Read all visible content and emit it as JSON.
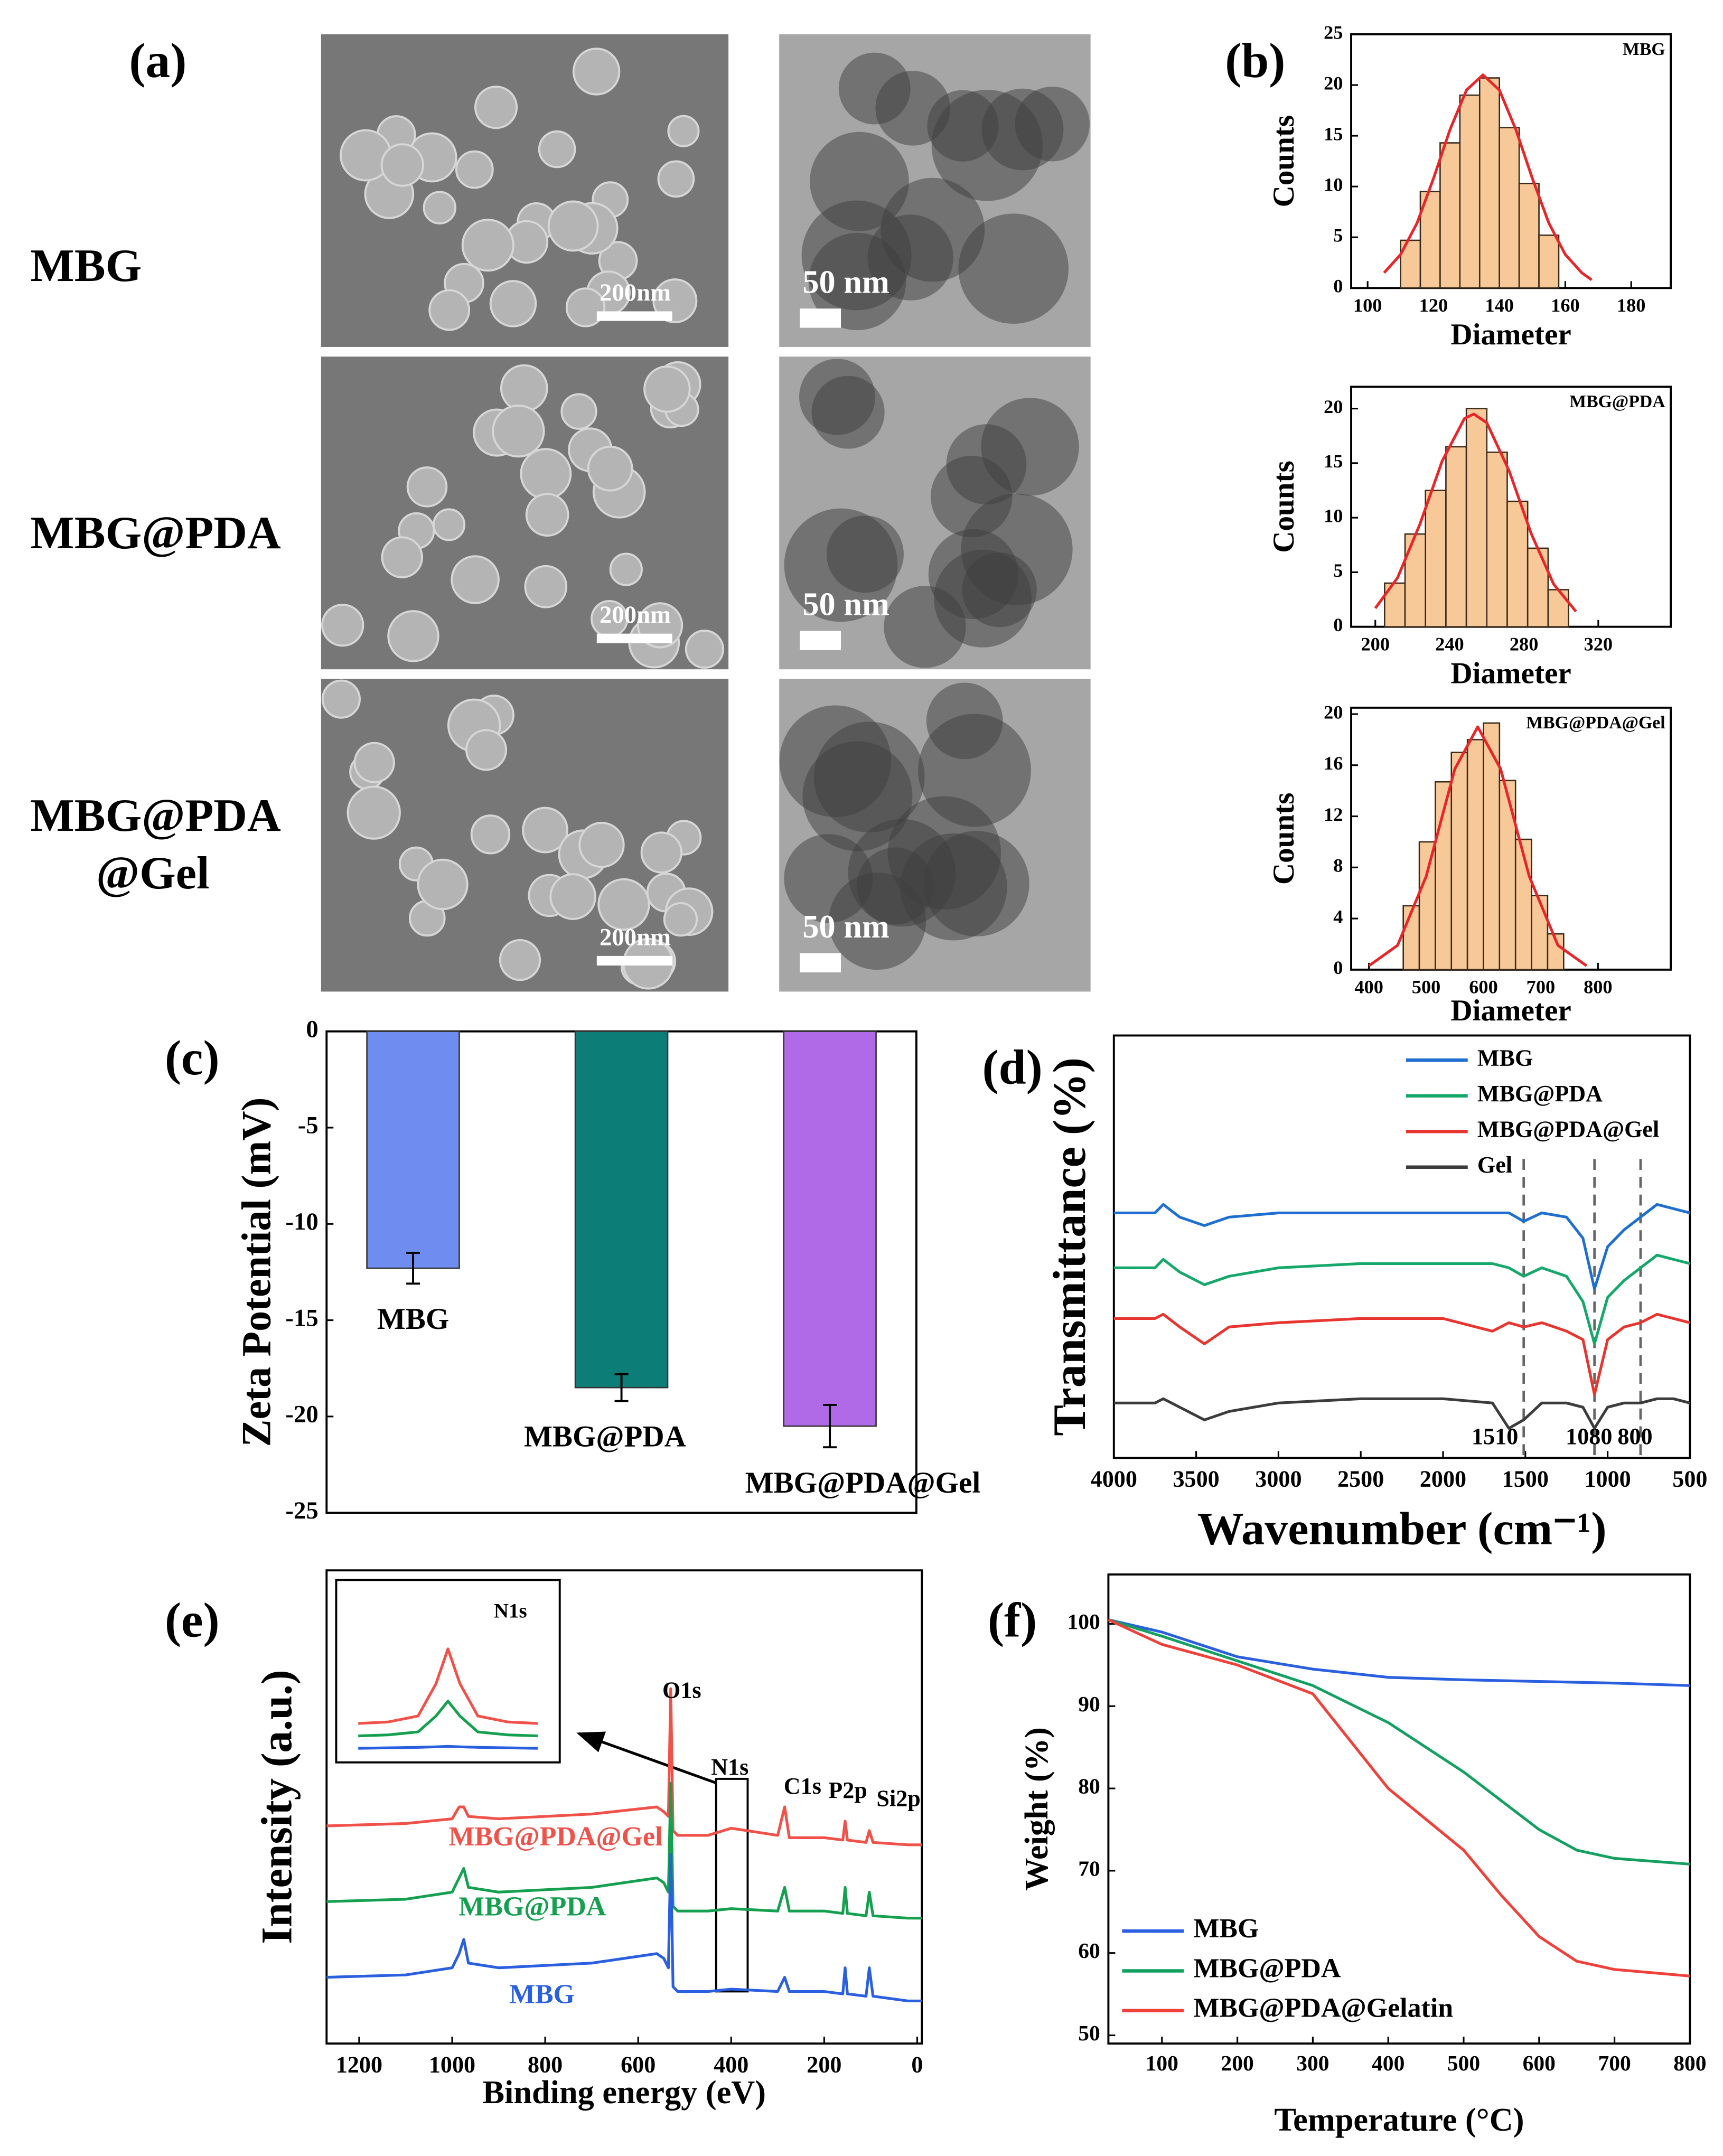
{
  "panels": [
    "(a)",
    "(b)",
    "(c)",
    "(d)",
    "(e)",
    "(f)"
  ],
  "micrographs": {
    "rows": [
      [
        "MBG"
      ],
      [
        "MBG@PDA"
      ],
      [
        "MBG@PDA",
        "@Gel"
      ]
    ],
    "sem_scale": "200nm",
    "tem_scale": "50 nm"
  },
  "chart_data": [
    {
      "type": "histogram",
      "title": "MBG",
      "xlabel": "Diameter",
      "ylabel": "Counts",
      "bins": [
        110,
        116,
        122,
        128,
        134,
        140,
        146,
        152,
        158
      ],
      "values": [
        4.7,
        9.5,
        14.3,
        19,
        20.7,
        15.8,
        10.3,
        5.2
      ],
      "color": "#f8c998",
      "edge_color": "#3a2a1a",
      "fit": {
        "color": "#e8262a",
        "x": [
          105,
          110,
          115,
          120,
          125,
          130,
          135,
          140,
          145,
          150,
          155,
          160,
          165,
          168
        ],
        "values": [
          1.5,
          3.3,
          6.4,
          10.8,
          15.6,
          19.5,
          21,
          19.5,
          15.6,
          10.8,
          6.4,
          3.3,
          1.5,
          0.8
        ]
      },
      "xlim": [
        95,
        192
      ],
      "xticks": [
        100,
        120,
        140,
        160,
        180
      ],
      "ylim": [
        0,
        25
      ],
      "yticks": [
        0,
        5,
        10,
        15,
        20,
        25
      ]
    },
    {
      "type": "histogram",
      "title": "MBG@PDA",
      "xlabel": "Diameter",
      "ylabel": "Counts",
      "bins": [
        205,
        216,
        227,
        238,
        249,
        260,
        271,
        282,
        293,
        304
      ],
      "values": [
        4,
        8.5,
        12.5,
        16.5,
        20,
        16,
        11.5,
        7.2,
        3.4
      ],
      "color": "#f8c998",
      "edge_color": "#3a2a1a",
      "fit": {
        "color": "#e8262a",
        "x": [
          200,
          212,
          224,
          236,
          248,
          253,
          260,
          272,
          284,
          296,
          308
        ],
        "values": [
          1.7,
          4.5,
          9.4,
          15.2,
          19.1,
          19.5,
          18.7,
          14.3,
          8.5,
          3.9,
          1.4
        ]
      },
      "xlim": [
        187,
        359
      ],
      "xticks": [
        200,
        240,
        280,
        320
      ],
      "ylim": [
        0,
        22
      ],
      "yticks": [
        0,
        5,
        10,
        15,
        20
      ]
    },
    {
      "type": "histogram",
      "title": "MBG@PDA@Gel",
      "xlabel": "Diameter",
      "ylabel": "Counts",
      "bins": [
        460,
        488,
        516,
        544,
        572,
        600,
        628,
        656,
        684,
        712,
        740
      ],
      "values": [
        5,
        10,
        14.7,
        17,
        18,
        19.3,
        14.8,
        10.2,
        5.8,
        2.8
      ],
      "color": "#f8c998",
      "edge_color": "#3a2a1a",
      "fit": {
        "color": "#e8262a",
        "x": [
          400,
          450,
          500,
          550,
          590,
          630,
          680,
          730,
          780
        ],
        "values": [
          0.3,
          1.9,
          7.3,
          15.7,
          19,
          15.7,
          7.3,
          1.9,
          0.3
        ]
      },
      "xlim": [
        369,
        927
      ],
      "xticks": [
        400,
        500,
        600,
        700,
        800
      ],
      "ylim": [
        0,
        20.5
      ],
      "yticks": [
        0,
        4,
        8,
        12,
        16,
        20
      ]
    },
    {
      "type": "bar",
      "ylabel": "Zeta Potential (mV)",
      "categories": [
        "MBG",
        "MBG@PDA",
        "MBG@PDA@Gel"
      ],
      "values": [
        -12.3,
        -18.5,
        -20.5
      ],
      "errors": [
        0.8,
        0.7,
        1.1
      ],
      "colors": [
        "#6f8cf0",
        "#0d7d78",
        "#b06ae8"
      ],
      "ylim": [
        -25,
        0
      ],
      "yticks": [
        0,
        -5,
        -10,
        -15,
        -20,
        -25
      ]
    },
    {
      "type": "line",
      "xlabel": "Wavenumber (cm⁻¹)",
      "ylabel": "Transmittance (%)",
      "legend": "upper left",
      "x": [
        4000,
        3750,
        3700,
        3600,
        3450,
        3300,
        3000,
        2500,
        2000,
        1700,
        1600,
        1510,
        1400,
        1250,
        1150,
        1080,
        1000,
        900,
        800,
        700,
        600,
        500
      ],
      "series": [
        {
          "name": "MBG",
          "color": "#1f6fd0",
          "values": [
            58,
            58,
            60,
            57,
            55,
            57,
            58,
            58,
            58,
            58,
            58,
            56,
            58,
            57,
            52,
            40,
            50,
            54,
            57,
            60,
            59,
            58
          ]
        },
        {
          "name": "MBG@PDA",
          "color": "#16a86a",
          "values": [
            45,
            45,
            47,
            44,
            41,
            43,
            45,
            46,
            46,
            46,
            45,
            43,
            45,
            43,
            37,
            27,
            38,
            42,
            45,
            48,
            47,
            46
          ]
        },
        {
          "name": "MBG@PDA@Gel",
          "color": "#e8352f",
          "values": [
            33,
            33,
            34,
            31,
            27,
            31,
            32,
            33,
            33,
            30,
            32,
            31,
            32,
            30,
            28,
            15,
            28,
            31,
            32,
            34,
            33,
            32
          ]
        },
        {
          "name": "Gel",
          "color": "#3c3c3c",
          "values": [
            13,
            13,
            14,
            12,
            9,
            11,
            13,
            14,
            14,
            13,
            7,
            9,
            13,
            13,
            12,
            7,
            12,
            13,
            13,
            14,
            14,
            13
          ]
        }
      ],
      "marker_lines": [
        1510,
        1080,
        800
      ],
      "xlim": [
        4000,
        500
      ],
      "xticks": [
        4000,
        3500,
        3000,
        2500,
        2000,
        1500,
        1000,
        500
      ],
      "ylim": [
        0,
        100
      ]
    },
    {
      "type": "line",
      "xlabel": "Binding energy (eV)",
      "ylabel": "Intensity (a.u.)",
      "legend": "beside curves",
      "x": [
        1270,
        1100,
        1000,
        985,
        975,
        965,
        900,
        700,
        560,
        545,
        535,
        530,
        525,
        515,
        450,
        400,
        300,
        285,
        275,
        200,
        160,
        155,
        150,
        110,
        103,
        95,
        20,
        -10
      ],
      "series": [
        {
          "name": "MBG@PDA@Gel",
          "color": "#f0524a",
          "values": [
            46,
            46.5,
            47.5,
            50,
            50,
            48,
            47.5,
            48.5,
            50,
            49,
            48,
            75,
            45,
            44,
            44,
            45.5,
            44,
            50,
            43.5,
            43.5,
            43,
            47,
            43,
            42.5,
            45,
            42.5,
            42,
            42
          ]
        },
        {
          "name": "MBG@PDA",
          "color": "#15a050",
          "values": [
            30,
            30.5,
            32,
            35,
            37,
            33,
            32,
            33,
            35,
            34,
            32,
            55,
            29,
            28,
            28,
            28.5,
            28,
            33,
            28,
            28,
            27.5,
            33,
            27.5,
            27,
            32,
            27,
            26.5,
            26.5
          ]
        },
        {
          "name": "MBG",
          "color": "#2a5fe0",
          "values": [
            14,
            14.5,
            16,
            19,
            22,
            17,
            16,
            17,
            19,
            18,
            16,
            40,
            12,
            11,
            11,
            11.5,
            11,
            14,
            11,
            11,
            10.5,
            16,
            10.5,
            10,
            16,
            10,
            9,
            9
          ]
        }
      ],
      "annotations": [
        "O1s",
        "N1s",
        "C1s",
        "P2p",
        "Si2p"
      ],
      "inset": {
        "label": "N1s",
        "x": [
          415,
          410,
          405,
          402,
          400,
          398,
          395,
          390,
          385
        ],
        "xlim": [
          418,
          382
        ],
        "ylim": [
          -2,
          22
        ],
        "series": [
          {
            "color": "#f0524a",
            "values": [
              5,
              5.3,
              6.5,
              13,
              20,
              13,
              6.5,
              5.3,
              5
            ]
          },
          {
            "color": "#15a050",
            "values": [
              2.5,
              2.7,
              3.3,
              6.5,
              9.5,
              6.5,
              3.3,
              2.7,
              2.5
            ]
          },
          {
            "color": "#2a5fe0",
            "values": [
              0,
              0.1,
              0.2,
              0.3,
              0.4,
              0.3,
              0.2,
              0.1,
              0
            ]
          }
        ]
      },
      "xlim": [
        1270,
        -10
      ],
      "xticks": [
        1200,
        1000,
        800,
        600,
        400,
        200,
        0
      ],
      "ylim": [
        0,
        100
      ]
    },
    {
      "type": "line",
      "xlabel": "Temperature (°C)",
      "ylabel": "Weight (%)",
      "legend": "lower left",
      "x": [
        29,
        100,
        200,
        300,
        400,
        500,
        550,
        600,
        650,
        700,
        800
      ],
      "series": [
        {
          "name": "MBG",
          "color": "#2a5fe0",
          "values": [
            100.5,
            99,
            96,
            94.5,
            93.5,
            93.2,
            93.1,
            93,
            92.9,
            92.8,
            92.5
          ]
        },
        {
          "name": "MBG@PDA",
          "color": "#14a060",
          "values": [
            100.5,
            98.5,
            95.5,
            92.5,
            88,
            82,
            78.5,
            75,
            72.5,
            71.5,
            70.8
          ]
        },
        {
          "name": "MBG@PDA@Gelatin",
          "color": "#f0403a",
          "values": [
            100.5,
            97.5,
            95,
            91.5,
            80,
            72.5,
            67,
            62,
            59,
            58,
            57.2
          ]
        }
      ],
      "xlim": [
        29,
        800
      ],
      "xticks": [
        100,
        200,
        300,
        400,
        500,
        600,
        700,
        800
      ],
      "ylim": [
        49,
        106
      ],
      "yticks": [
        50,
        60,
        70,
        80,
        90,
        100
      ]
    }
  ]
}
